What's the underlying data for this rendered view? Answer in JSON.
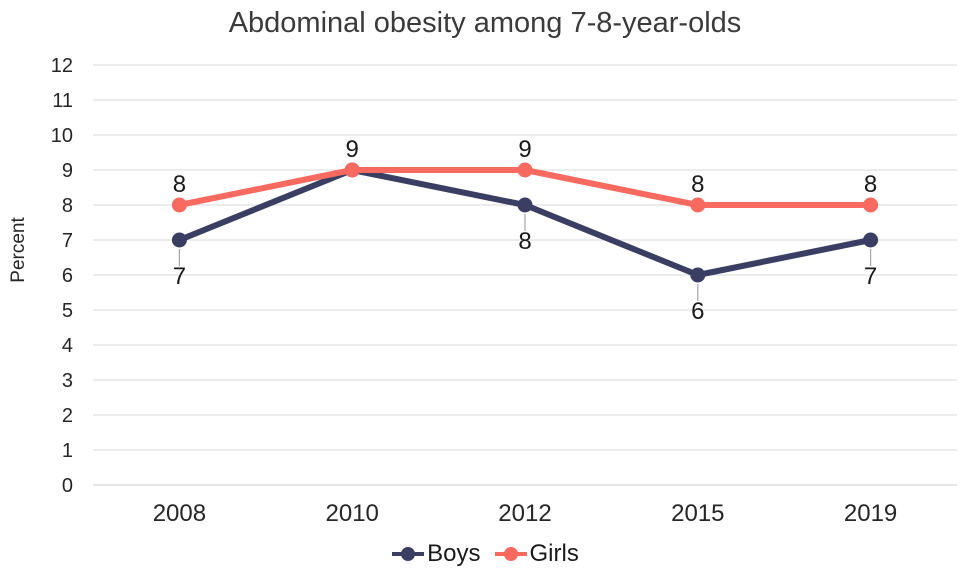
{
  "chart_data": {
    "type": "line",
    "title": "Abdominal obesity among 7-8-year-olds",
    "ylabel": "Percent",
    "xlabel": "",
    "categories": [
      "2008",
      "2010",
      "2012",
      "2015",
      "2019"
    ],
    "series": [
      {
        "name": "Boys",
        "color": "#3A3E63",
        "values": [
          7,
          9,
          8,
          6,
          7
        ],
        "point_labels": [
          "7",
          "",
          "8",
          "6",
          "7"
        ],
        "label_position": "below-with-leader"
      },
      {
        "name": "Girls",
        "color": "#F8695F",
        "values": [
          8,
          9,
          9,
          8,
          8
        ],
        "point_labels": [
          "8",
          "9",
          "9",
          "8",
          "8"
        ],
        "label_position": "above"
      }
    ],
    "ylim": [
      0,
      12
    ],
    "ytick_step": 1,
    "grid": "horizontal",
    "legend_position": "bottom",
    "colors": {
      "gridline": "#D9D9D9",
      "axis_line": "#CFCFCF",
      "leader_line": "#A6A6A6",
      "tick_text": "#262626",
      "data_label_text": "#1a1a1a",
      "title_text": "#3b3b3b"
    }
  }
}
